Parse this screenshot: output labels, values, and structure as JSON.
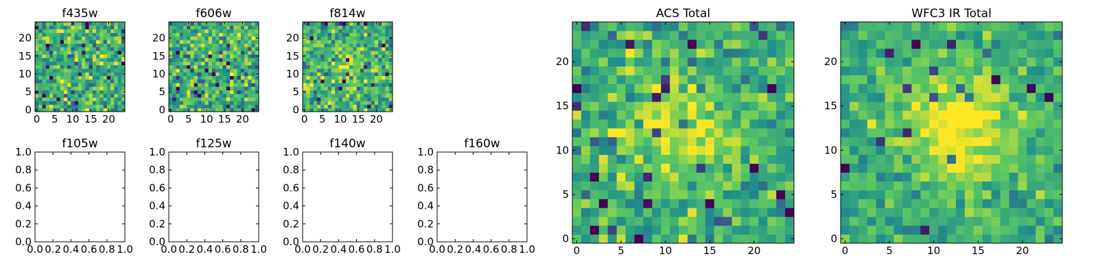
{
  "figure": {
    "background": "#ffffff"
  },
  "colormap": {
    "name": "viridis",
    "stops": [
      "#440154",
      "#3b528b",
      "#21918c",
      "#5ec962",
      "#fde725"
    ]
  },
  "chart_data": [
    {
      "id": "f435w",
      "type": "heatmap",
      "title": "f435w",
      "grid": [
        25,
        25
      ],
      "xlim": [
        -0.5,
        24.5
      ],
      "ylim": [
        -0.5,
        24.5
      ],
      "xticks": [
        0,
        5,
        10,
        15,
        20
      ],
      "xtick_labels": [
        "0",
        "5",
        "10",
        "15",
        "20"
      ],
      "yticks": [
        0,
        5,
        10,
        15,
        20
      ],
      "ytick_labels": [
        "0",
        "5",
        "10",
        "15",
        "20"
      ],
      "noise": 0.3,
      "blob": {
        "cx": 12,
        "cy": 12,
        "sigma": 6,
        "amp": 0.05
      },
      "seed": 435
    },
    {
      "id": "f606w",
      "type": "heatmap",
      "title": "f606w",
      "grid": [
        25,
        25
      ],
      "xlim": [
        -0.5,
        24.5
      ],
      "ylim": [
        -0.5,
        24.5
      ],
      "xticks": [
        0,
        5,
        10,
        15,
        20
      ],
      "xtick_labels": [
        "0",
        "5",
        "10",
        "15",
        "20"
      ],
      "yticks": [
        0,
        5,
        10,
        15,
        20
      ],
      "ytick_labels": [
        "0",
        "5",
        "10",
        "15",
        "20"
      ],
      "noise": 0.3,
      "blob": {
        "cx": 12,
        "cy": 12,
        "sigma": 6,
        "amp": 0.05
      },
      "seed": 606
    },
    {
      "id": "f814w",
      "type": "heatmap",
      "title": "f814w",
      "grid": [
        25,
        25
      ],
      "xlim": [
        -0.5,
        24.5
      ],
      "ylim": [
        -0.5,
        24.5
      ],
      "xticks": [
        0,
        5,
        10,
        15,
        20
      ],
      "xtick_labels": [
        "0",
        "5",
        "10",
        "15",
        "20"
      ],
      "yticks": [
        0,
        5,
        10,
        15,
        20
      ],
      "ytick_labels": [
        "0",
        "5",
        "10",
        "15",
        "20"
      ],
      "noise": 0.28,
      "blob": {
        "cx": 12,
        "cy": 12,
        "sigma": 5,
        "amp": 0.15
      },
      "seed": 814
    },
    {
      "id": "f105w",
      "type": "empty",
      "title": "f105w",
      "xlim": [
        0,
        1
      ],
      "ylim": [
        0,
        1
      ],
      "xticks": [
        0,
        0.2,
        0.4,
        0.6,
        0.8,
        1.0
      ],
      "xtick_labels": [
        "0.0",
        "0.2",
        "0.4",
        "0.6",
        "0.8",
        "1.0"
      ],
      "yticks": [
        0,
        0.2,
        0.4,
        0.6,
        0.8,
        1.0
      ],
      "ytick_labels": [
        "0.0",
        "0.2",
        "0.4",
        "0.6",
        "0.8",
        "1.0"
      ]
    },
    {
      "id": "f125w",
      "type": "empty",
      "title": "f125w",
      "xlim": [
        0,
        1
      ],
      "ylim": [
        0,
        1
      ],
      "xticks": [
        0,
        0.2,
        0.4,
        0.6,
        0.8,
        1.0
      ],
      "xtick_labels": [
        "0.0",
        "0.2",
        "0.4",
        "0.6",
        "0.8",
        "1.0"
      ],
      "yticks": [
        0,
        0.2,
        0.4,
        0.6,
        0.8,
        1.0
      ],
      "ytick_labels": [
        "0.0",
        "0.2",
        "0.4",
        "0.6",
        "0.8",
        "1.0"
      ]
    },
    {
      "id": "f140w",
      "type": "empty",
      "title": "f140w",
      "xlim": [
        0,
        1
      ],
      "ylim": [
        0,
        1
      ],
      "xticks": [
        0,
        0.2,
        0.4,
        0.6,
        0.8,
        1.0
      ],
      "xtick_labels": [
        "0.0",
        "0.2",
        "0.4",
        "0.6",
        "0.8",
        "1.0"
      ],
      "yticks": [
        0,
        0.2,
        0.4,
        0.6,
        0.8,
        1.0
      ],
      "ytick_labels": [
        "0.0",
        "0.2",
        "0.4",
        "0.6",
        "0.8",
        "1.0"
      ]
    },
    {
      "id": "f160w",
      "type": "empty",
      "title": "f160w",
      "xlim": [
        0,
        1
      ],
      "ylim": [
        0,
        1
      ],
      "xticks": [
        0,
        0.2,
        0.4,
        0.6,
        0.8,
        1.0
      ],
      "xtick_labels": [
        "0.0",
        "0.2",
        "0.4",
        "0.6",
        "0.8",
        "1.0"
      ],
      "yticks": [
        0,
        0.2,
        0.4,
        0.6,
        0.8,
        1.0
      ],
      "ytick_labels": [
        "0.0",
        "0.2",
        "0.4",
        "0.6",
        "0.8",
        "1.0"
      ]
    },
    {
      "id": "acs-total",
      "type": "heatmap",
      "title": "ACS Total",
      "grid": [
        25,
        25
      ],
      "xlim": [
        -0.5,
        24.5
      ],
      "ylim": [
        -0.5,
        24.5
      ],
      "xticks": [
        0,
        5,
        10,
        15,
        20
      ],
      "xtick_labels": [
        "0",
        "5",
        "10",
        "15",
        "20"
      ],
      "yticks": [
        0,
        5,
        10,
        15,
        20
      ],
      "ytick_labels": [
        "0",
        "5",
        "10",
        "15",
        "20"
      ],
      "noise": 0.24,
      "blob": {
        "cx": 12,
        "cy": 12.5,
        "sigma": 4.5,
        "amp": 0.25
      },
      "seed": 1001
    },
    {
      "id": "wfc3-ir-total",
      "type": "heatmap",
      "title": "WFC3 IR Total",
      "grid": [
        25,
        25
      ],
      "xlim": [
        -0.5,
        24.5
      ],
      "ylim": [
        -0.5,
        24.5
      ],
      "xticks": [
        0,
        5,
        10,
        15,
        20
      ],
      "xtick_labels": [
        "0",
        "5",
        "10",
        "15",
        "20"
      ],
      "yticks": [
        0,
        5,
        10,
        15,
        20
      ],
      "ytick_labels": [
        "0",
        "5",
        "10",
        "15",
        "20"
      ],
      "noise": 0.18,
      "blob": {
        "cx": 12.5,
        "cy": 12.5,
        "sigma": 4.0,
        "amp": 0.45
      },
      "seed": 2002
    }
  ]
}
